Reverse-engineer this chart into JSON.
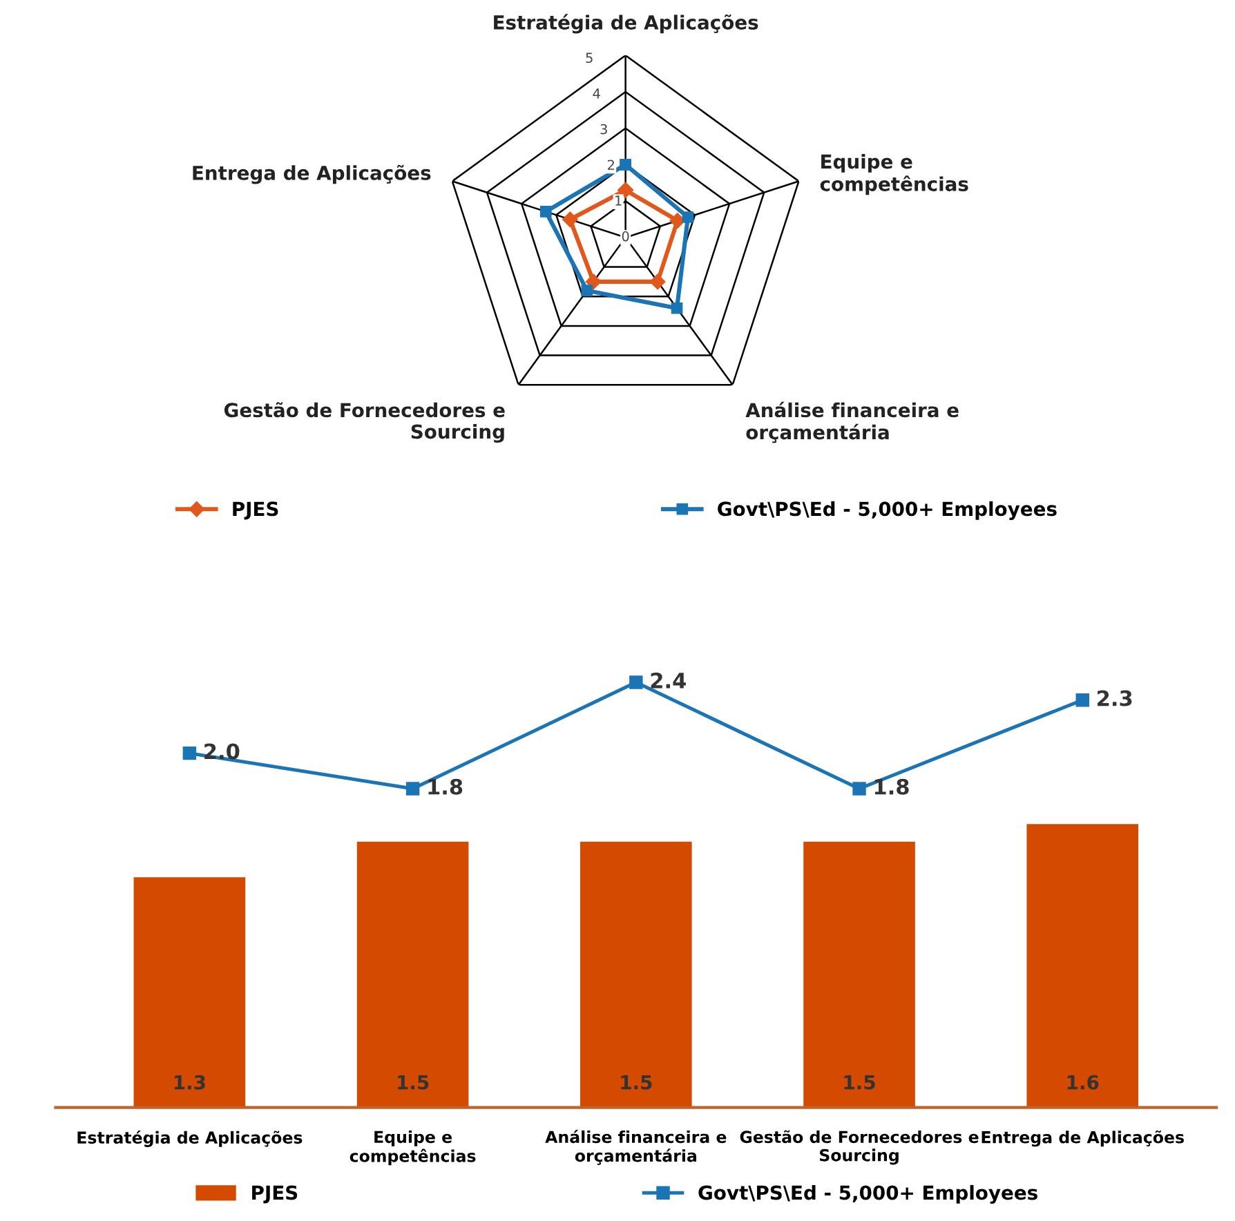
{
  "chart_data": [
    {
      "type": "radar",
      "categories": [
        "Estratégia de Aplicações",
        "Equipe e\ncompetências",
        "Análise financeira e\norçamentária",
        "Gestão de Fornecedores e\nSourcing",
        "Entrega de Aplicações"
      ],
      "series": [
        {
          "name": "PJES",
          "color": "#e0581c",
          "values": [
            1.3,
            1.5,
            1.5,
            1.5,
            1.6
          ],
          "marker": "diamond"
        },
        {
          "name": "Govt\\PS\\Ed - 5,000+ Employees",
          "color": "#1b75b5",
          "values": [
            2.0,
            1.8,
            2.4,
            1.8,
            2.3
          ],
          "marker": "square"
        }
      ],
      "ylim": [
        0,
        5
      ],
      "yticks": [
        0,
        1,
        2,
        3,
        4,
        5
      ],
      "legend": "bottom"
    },
    {
      "type": "bar",
      "categories": [
        "Estratégia de Aplicações",
        "Equipe e\ncompetências",
        "Análise financeira e\norçamentária",
        "Gestão de Fornecedores e\nSourcing",
        "Entrega de Aplicações"
      ],
      "series": [
        {
          "name": "PJES",
          "color": "#d34a00",
          "values": [
            1.3,
            1.5,
            1.5,
            1.5,
            1.6
          ],
          "value_labels": [
            "1.3",
            "1.5",
            "1.5",
            "1.5",
            "1.6"
          ]
        },
        {
          "name": "Govt\\PS\\Ed - 5,000+ Employees",
          "type": "line",
          "color": "#1b75b5",
          "values": [
            2.0,
            1.8,
            2.4,
            1.8,
            2.3
          ],
          "value_labels": [
            "2.0",
            "1.8",
            "2.4",
            "1.8",
            "2.3"
          ],
          "marker": "square"
        }
      ],
      "legend": "bottom",
      "grid": false
    }
  ]
}
